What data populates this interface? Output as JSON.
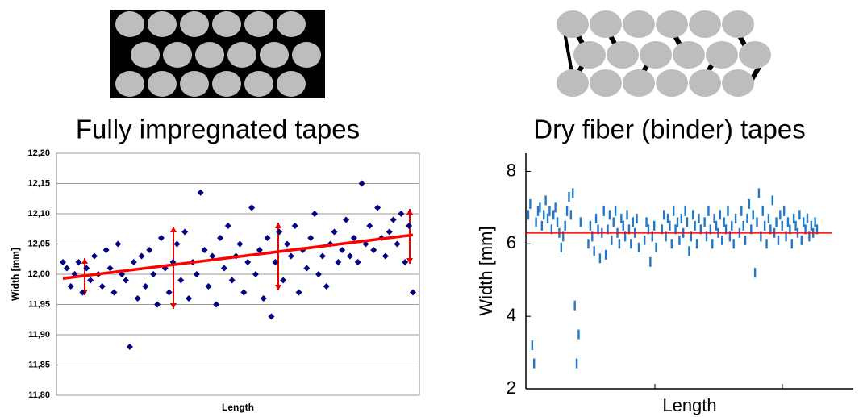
{
  "chart_data": [
    {
      "type": "scatter",
      "title": "Fully impregnated tapes",
      "x_label": "Length",
      "y_label": "Width [mm]",
      "values": [
        12.02,
        12.01,
        11.98,
        12.0,
        12.02,
        11.97,
        12.01,
        11.99,
        12.03,
        12.0,
        11.98,
        12.04,
        12.01,
        11.97,
        12.05,
        12.0,
        11.99,
        11.88,
        12.02,
        11.96,
        12.03,
        11.98,
        12.04,
        12.0,
        11.95,
        12.06,
        12.01,
        11.97,
        12.02,
        12.05,
        11.99,
        12.07,
        11.96,
        12.02,
        12.0,
        12.135,
        12.04,
        11.98,
        12.03,
        11.95,
        12.06,
        12.01,
        12.08,
        11.99,
        12.03,
        12.05,
        11.97,
        12.02,
        12.11,
        12.0,
        12.04,
        11.96,
        12.06,
        11.93,
        12.02,
        12.07,
        11.99,
        12.05,
        12.03,
        12.08,
        11.97,
        12.04,
        12.01,
        12.06,
        12.1,
        12.0,
        12.03,
        11.98,
        12.05,
        12.07,
        12.02,
        12.04,
        12.09,
        12.03,
        12.06,
        12.02,
        12.15,
        12.05,
        12.08,
        12.04,
        12.11,
        12.06,
        12.03,
        12.07,
        12.09,
        12.05,
        12.1,
        12.02,
        12.08,
        11.97
      ],
      "trend_line": [
        11.993,
        12.065
      ],
      "trend_color": "#ff0000",
      "color": "#000080",
      "marker": "diamond",
      "grid": true,
      "ylim": [
        11.8,
        12.2
      ],
      "yticks": [
        {
          "value": 11.8,
          "label": "11,80"
        },
        {
          "value": 11.85,
          "label": "11,85"
        },
        {
          "value": 11.9,
          "label": "11,90"
        },
        {
          "value": 11.95,
          "label": "11,95"
        },
        {
          "value": 12.0,
          "label": "12,00"
        },
        {
          "value": 12.05,
          "label": "12,05"
        },
        {
          "value": 12.1,
          "label": "12,10"
        },
        {
          "value": 12.15,
          "label": "12,15"
        },
        {
          "value": 12.2,
          "label": "12,20"
        }
      ]
    },
    {
      "type": "scatter",
      "title": "Dry fiber (binder) tapes",
      "x_label": "Length",
      "y_label": "Width [mm]",
      "values": [
        6.8,
        7.1,
        3.2,
        2.7,
        6.6,
        6.9,
        7.0,
        6.5,
        6.8,
        7.2,
        6.7,
        6.9,
        6.4,
        6.8,
        7.0,
        6.6,
        6.3,
        5.9,
        6.2,
        6.5,
        6.9,
        7.3,
        6.8,
        7.4,
        4.3,
        2.7,
        3.5,
        6.6,
        null,
        null,
        null,
        6.0,
        6.5,
        6.2,
        5.8,
        6.7,
        6.4,
        5.6,
        6.3,
        6.9,
        5.7,
        6.4,
        6.8,
        6.1,
        6.6,
        6.9,
        6.3,
        6.0,
        6.7,
        6.5,
        6.2,
        6.8,
        6.4,
        6.0,
        6.6,
        6.3,
        6.7,
        5.9,
        null,
        null,
        6.1,
        6.6,
        6.4,
        5.5,
        6.2,
        6.5,
        5.9,
        null,
        null,
        6.4,
        6.8,
        6.2,
        6.7,
        6.5,
        6.0,
        6.9,
        6.4,
        6.6,
        6.1,
        6.7,
        6.3,
        6.9,
        6.6,
        5.8,
        6.2,
        6.8,
        6.5,
        6.0,
        6.7,
        6.4,
        null,
        6.6,
        6.2,
        6.9,
        6.4,
        6.0,
        6.7,
        6.5,
        6.3,
        6.8,
        6.1,
        6.6,
        6.4,
        6.9,
        6.2,
        6.5,
        6.0,
        6.7,
        null,
        6.3,
        6.9,
        6.5,
        6.1,
        6.7,
        7.1,
        6.4,
        6.8,
        5.2,
        6.6,
        7.4,
        6.2,
        6.9,
        6.5,
        6.0,
        6.7,
        6.4,
        7.2,
        6.3,
        6.6,
        6.1,
        6.8,
        6.5,
        6.9,
        6.2,
        6.6,
        6.4,
        6.0,
        6.7,
        6.5,
        6.3,
        6.8,
        6.1,
        6.6,
        6.4,
        6.7,
        6.2,
        6.5,
        6.3,
        6.6,
        6.4
      ],
      "mean_line": 6.3,
      "mean_color": "#ff0000",
      "color": "#1f78c8",
      "marker": "dash",
      "grid": false,
      "ylim": [
        2,
        8.5
      ],
      "yticks": [
        2,
        4,
        6,
        8
      ]
    }
  ]
}
